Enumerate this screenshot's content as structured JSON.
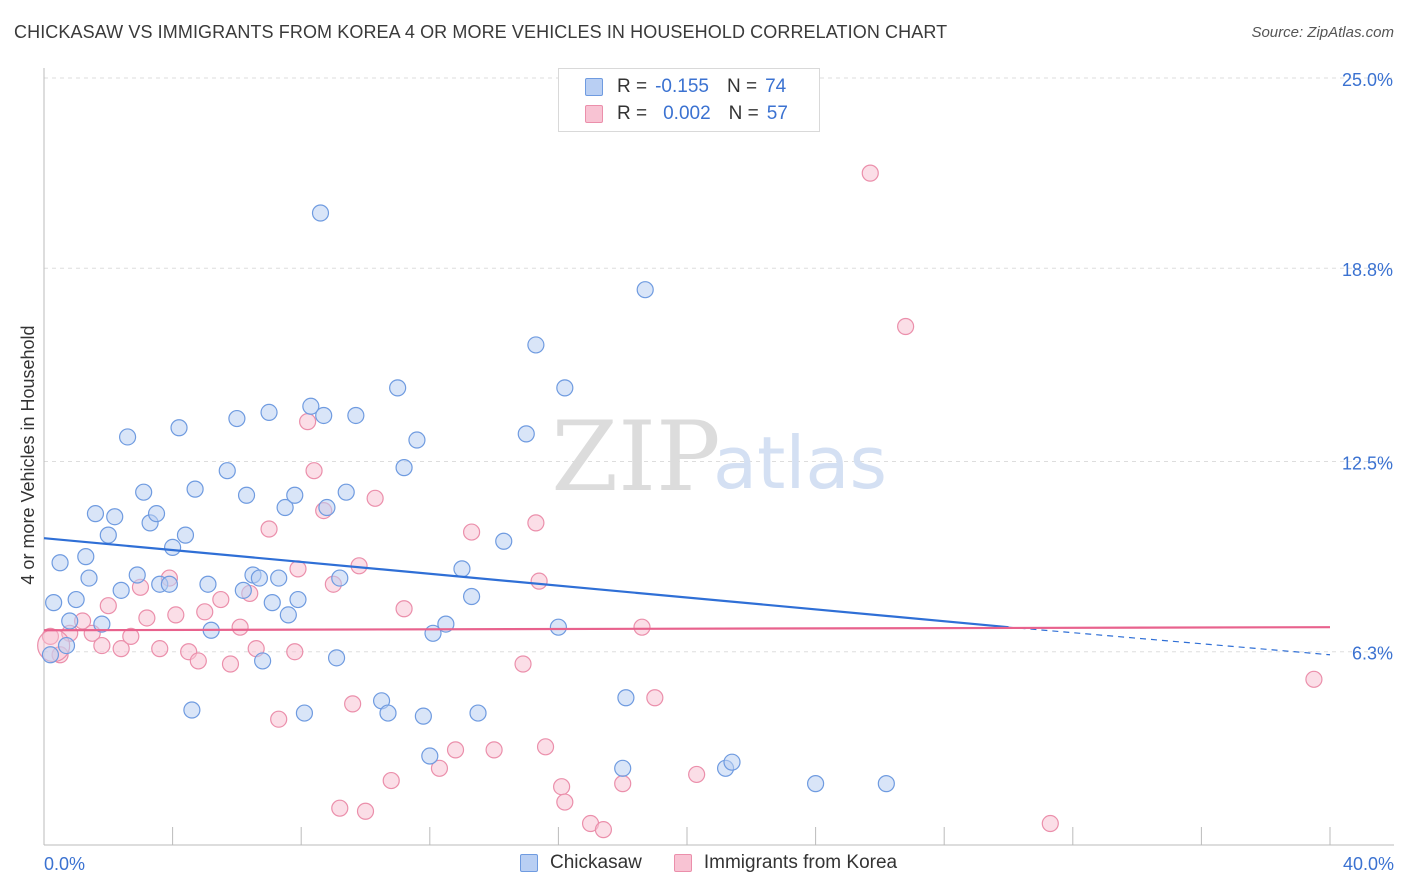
{
  "title": "CHICKASAW VS IMMIGRANTS FROM KOREA 4 OR MORE VEHICLES IN HOUSEHOLD CORRELATION CHART",
  "source": "Source: ZipAtlas.com",
  "watermark": {
    "zip": "ZIP",
    "atlas": "atlas"
  },
  "legend": {
    "series1": {
      "r_label": "R =",
      "r_value": "-0.155",
      "n_label": "N =",
      "n_value": "74"
    },
    "series2": {
      "r_label": "R =",
      "r_value": "0.002",
      "n_label": "N =",
      "n_value": "57"
    }
  },
  "colors": {
    "blue_fill": "#b9cff3",
    "blue_stroke": "#6f9be0",
    "blue_line": "#2f6fd6",
    "pink_fill": "#f8c3d3",
    "pink_stroke": "#eb8fab",
    "pink_line": "#e8628d",
    "axis_text": "#3b72d1",
    "grid": "#dddddd"
  },
  "chart_data": {
    "type": "scatter",
    "title": "CHICKASAW VS IMMIGRANTS FROM KOREA 4 OR MORE VEHICLES IN HOUSEHOLD CORRELATION CHART",
    "ylabel": "4 or more Vehicles in Household",
    "xlabel": "",
    "xlim": [
      0,
      40
    ],
    "ylim": [
      0,
      25
    ],
    "x_tick_labels": [
      "0.0%",
      "40.0%"
    ],
    "y_ticks": [
      6.3,
      12.5,
      18.8,
      25.0
    ],
    "y_tick_labels": [
      "6.3%",
      "12.5%",
      "18.8%",
      "25.0%"
    ],
    "series": [
      {
        "name": "Chickasaw",
        "color": "blue",
        "trend": {
          "x0": 0,
          "y0": 10.0,
          "x1": 30,
          "y1": 7.1,
          "dash_to_x": 40,
          "dash_to_y": 6.2
        },
        "points": [
          [
            0.2,
            6.2
          ],
          [
            0.3,
            7.9
          ],
          [
            0.5,
            9.2
          ],
          [
            0.7,
            6.5
          ],
          [
            0.8,
            7.3
          ],
          [
            1.0,
            8.0
          ],
          [
            1.3,
            9.4
          ],
          [
            1.4,
            8.7
          ],
          [
            1.6,
            10.8
          ],
          [
            1.8,
            7.2
          ],
          [
            2.0,
            10.1
          ],
          [
            2.2,
            10.7
          ],
          [
            2.4,
            8.3
          ],
          [
            2.6,
            13.3
          ],
          [
            2.9,
            8.8
          ],
          [
            3.1,
            11.5
          ],
          [
            3.3,
            10.5
          ],
          [
            3.5,
            10.8
          ],
          [
            3.6,
            8.5
          ],
          [
            3.9,
            8.5
          ],
          [
            4.0,
            9.7
          ],
          [
            4.2,
            13.6
          ],
          [
            4.4,
            10.1
          ],
          [
            4.6,
            4.4
          ],
          [
            4.7,
            11.6
          ],
          [
            5.1,
            8.5
          ],
          [
            5.2,
            7.0
          ],
          [
            5.7,
            12.2
          ],
          [
            6.0,
            13.9
          ],
          [
            6.2,
            8.3
          ],
          [
            6.3,
            11.4
          ],
          [
            6.5,
            8.8
          ],
          [
            6.7,
            8.7
          ],
          [
            6.8,
            6.0
          ],
          [
            7.0,
            14.1
          ],
          [
            7.1,
            7.9
          ],
          [
            7.3,
            8.7
          ],
          [
            7.5,
            11.0
          ],
          [
            7.6,
            7.5
          ],
          [
            7.8,
            11.4
          ],
          [
            7.9,
            8.0
          ],
          [
            8.1,
            4.3
          ],
          [
            8.3,
            14.3
          ],
          [
            8.6,
            20.6
          ],
          [
            8.7,
            14.0
          ],
          [
            8.8,
            11.0
          ],
          [
            9.1,
            6.1
          ],
          [
            9.2,
            8.7
          ],
          [
            9.4,
            11.5
          ],
          [
            9.7,
            14.0
          ],
          [
            10.5,
            4.7
          ],
          [
            10.7,
            4.3
          ],
          [
            11.0,
            14.9
          ],
          [
            11.2,
            12.3
          ],
          [
            11.6,
            13.2
          ],
          [
            11.8,
            4.2
          ],
          [
            12.0,
            2.9
          ],
          [
            12.1,
            6.9
          ],
          [
            12.5,
            7.2
          ],
          [
            13.0,
            9.0
          ],
          [
            13.3,
            8.1
          ],
          [
            13.5,
            4.3
          ],
          [
            14.3,
            9.9
          ],
          [
            15.0,
            13.4
          ],
          [
            15.3,
            16.3
          ],
          [
            16.0,
            7.1
          ],
          [
            16.2,
            14.9
          ],
          [
            18.0,
            2.5
          ],
          [
            18.1,
            4.8
          ],
          [
            18.7,
            18.1
          ],
          [
            21.2,
            2.5
          ],
          [
            21.4,
            2.7
          ],
          [
            24.0,
            2.0
          ],
          [
            26.2,
            2.0
          ]
        ]
      },
      {
        "name": "Immigrants from Korea",
        "color": "pink",
        "trend": {
          "x0": 0,
          "y0": 7.0,
          "x1": 40,
          "y1": 7.1
        },
        "points": [
          [
            0.2,
            6.8
          ],
          [
            0.5,
            6.2
          ],
          [
            0.8,
            6.9
          ],
          [
            1.2,
            7.3
          ],
          [
            1.5,
            6.9
          ],
          [
            1.8,
            6.5
          ],
          [
            2.0,
            7.8
          ],
          [
            2.4,
            6.4
          ],
          [
            2.7,
            6.8
          ],
          [
            3.0,
            8.4
          ],
          [
            3.2,
            7.4
          ],
          [
            3.6,
            6.4
          ],
          [
            3.9,
            8.7
          ],
          [
            4.1,
            7.5
          ],
          [
            4.5,
            6.3
          ],
          [
            4.8,
            6.0
          ],
          [
            5.0,
            7.6
          ],
          [
            5.5,
            8.0
          ],
          [
            5.8,
            5.9
          ],
          [
            6.1,
            7.1
          ],
          [
            6.4,
            8.2
          ],
          [
            6.6,
            6.4
          ],
          [
            7.0,
            10.3
          ],
          [
            7.3,
            4.1
          ],
          [
            7.8,
            6.3
          ],
          [
            7.9,
            9.0
          ],
          [
            8.2,
            13.8
          ],
          [
            8.4,
            12.2
          ],
          [
            8.7,
            10.9
          ],
          [
            9.0,
            8.5
          ],
          [
            9.2,
            1.2
          ],
          [
            9.6,
            4.6
          ],
          [
            9.8,
            9.1
          ],
          [
            10.0,
            1.1
          ],
          [
            10.3,
            11.3
          ],
          [
            10.8,
            2.1
          ],
          [
            11.2,
            7.7
          ],
          [
            12.3,
            2.5
          ],
          [
            12.8,
            3.1
          ],
          [
            13.3,
            10.2
          ],
          [
            14.0,
            3.1
          ],
          [
            14.9,
            5.9
          ],
          [
            15.3,
            10.5
          ],
          [
            15.4,
            8.6
          ],
          [
            15.6,
            3.2
          ],
          [
            16.1,
            1.9
          ],
          [
            16.2,
            1.4
          ],
          [
            17.0,
            0.7
          ],
          [
            17.4,
            0.5
          ],
          [
            18.0,
            2.0
          ],
          [
            18.6,
            7.1
          ],
          [
            19.0,
            4.8
          ],
          [
            20.3,
            2.3
          ],
          [
            25.7,
            21.9
          ],
          [
            26.8,
            16.9
          ],
          [
            31.3,
            0.7
          ],
          [
            39.5,
            5.4
          ]
        ]
      }
    ]
  }
}
